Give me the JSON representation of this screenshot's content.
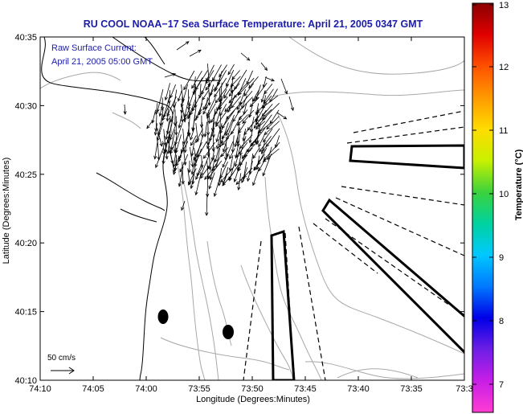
{
  "title": "RU COOL  NOAA−17  Sea Surface Temperature:  April 21, 2005 0347 GMT",
  "legend": {
    "line1": "Raw Surface Current:",
    "line2": "April 21, 2005 05:00 GMT"
  },
  "scale_label": "50 cm/s",
  "x_axis": {
    "label": "Longitude (Degrees:Minutes)",
    "ticks": [
      "74:10",
      "74:05",
      "74:00",
      "73:55",
      "73:50",
      "73:45",
      "73:40",
      "73:35",
      "73:3"
    ]
  },
  "y_axis": {
    "label": "Latitude (Degrees:Minutes)",
    "ticks": [
      "40:35",
      "40:30",
      "40:25",
      "40:20",
      "40:15",
      "40:10"
    ]
  },
  "colorbar": {
    "label": "Temperature (°C)",
    "ticks": [
      "13",
      "12",
      "11",
      "10",
      "9",
      "8",
      "7"
    ],
    "stops": [
      "#8a0000",
      "#e00000",
      "#ff5000",
      "#ff9a00",
      "#ffdc00",
      "#c8f000",
      "#3cd23c",
      "#00d2a0",
      "#00c8ff",
      "#0078ff",
      "#0000e6",
      "#6e1ee6",
      "#c81ee6",
      "#ff3cd2"
    ]
  },
  "colors": {
    "title": "#1c1ca8",
    "contour": "#a8a8a8",
    "coast": "#000000"
  },
  "chart_data": {
    "type": "map",
    "title": "RU COOL  NOAA−17  Sea Surface Temperature:  April 21, 2005 0347 GMT",
    "xlabel": "Longitude (Degrees:Minutes)",
    "ylabel": "Latitude (Degrees:Minutes)",
    "xlim": [
      "74:10",
      "73:30"
    ],
    "ylim": [
      "40:10",
      "40:35"
    ],
    "colorbar_range": [
      6.5,
      13
    ],
    "current_vectors": {
      "lon_range": [
        "74:02",
        "73:50"
      ],
      "lat_range": [
        "40:25",
        "40:32"
      ],
      "reference": "50 cm/s",
      "dominant_flow": "south-southeast"
    },
    "markers": [
      {
        "lon": "73:59",
        "lat": "40:14.6"
      },
      {
        "lon": "73:52.2",
        "lat": "40:13.5"
      }
    ]
  }
}
